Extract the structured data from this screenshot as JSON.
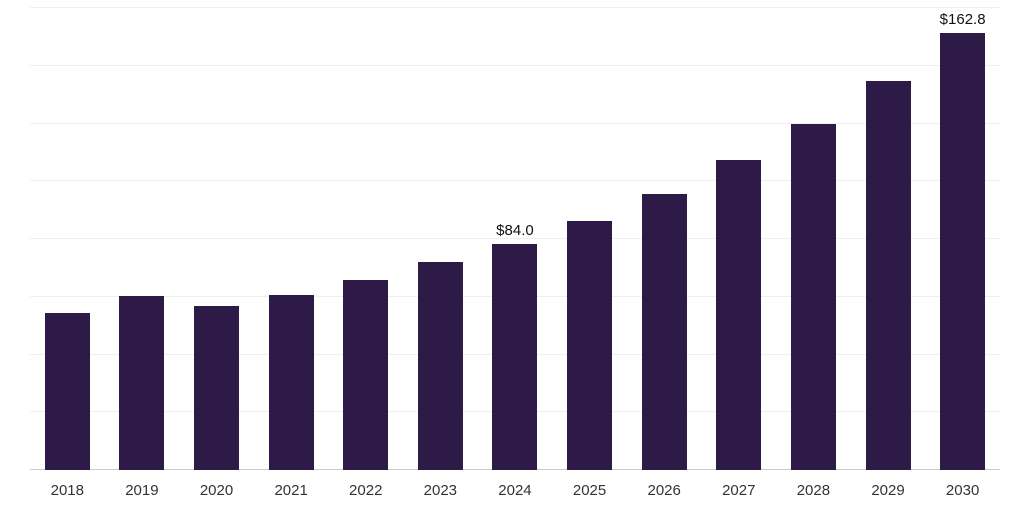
{
  "chart_data": {
    "type": "bar",
    "categories": [
      "2018",
      "2019",
      "2020",
      "2021",
      "2022",
      "2023",
      "2024",
      "2025",
      "2026",
      "2027",
      "2028",
      "2029",
      "2030"
    ],
    "values": [
      58.6,
      64.6,
      60.9,
      65.3,
      70.6,
      77.3,
      84.0,
      92.6,
      102.7,
      115.4,
      128.8,
      144.9,
      162.8
    ],
    "data_labels": {
      "2024": "$84.0",
      "2030": "$162.8"
    },
    "title": "",
    "xlabel": "",
    "ylabel": "",
    "ylim": [
      0,
      172
    ],
    "grid": true,
    "gridline_count": 8,
    "legend": "none",
    "bar_color": "#2e1a47",
    "background_color": "#ffffff",
    "gridline_color": "#efefef",
    "axis_line_color": "#cccccc",
    "value_label_color": "#111111",
    "tick_label_color": "#333333"
  }
}
